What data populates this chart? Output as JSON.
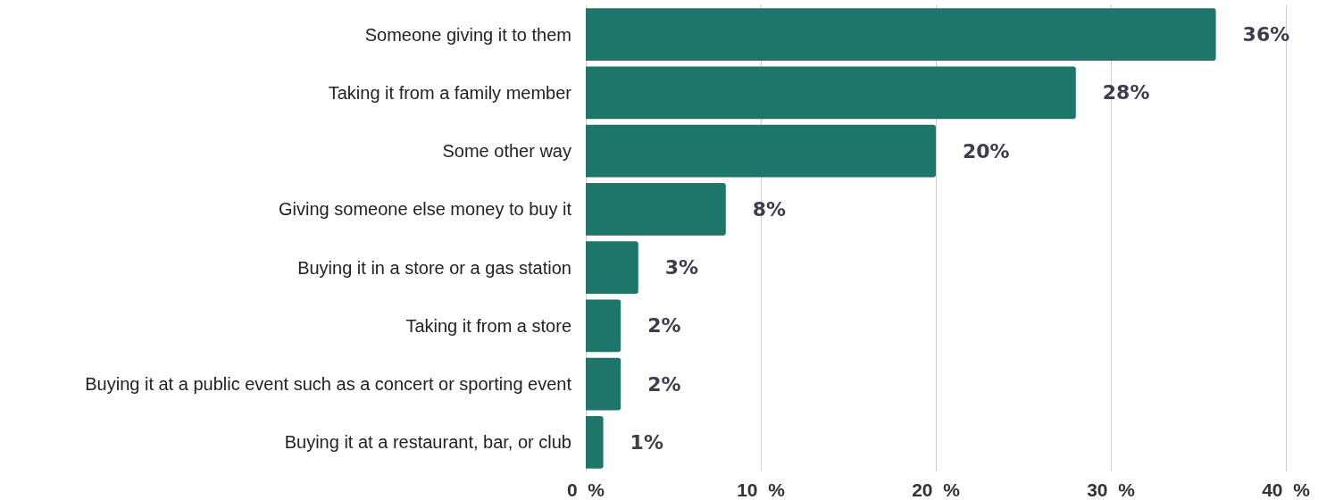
{
  "chart_data": {
    "type": "bar",
    "orientation": "horizontal",
    "categories": [
      "Someone giving it to them",
      "Taking it from a family member",
      "Some other way",
      "Giving someone else money to buy it",
      "Buying it in a store or a gas station",
      "Taking it from a store",
      "Buying it at a public event such as a concert or sporting event",
      "Buying it at a restaurant, bar, or club"
    ],
    "values": [
      36,
      28,
      20,
      8,
      3,
      2,
      2,
      1
    ],
    "value_labels": [
      "36%",
      "28%",
      "20%",
      "8%",
      "3%",
      "2%",
      "2%",
      "1%"
    ],
    "color": "#1e7569",
    "xlim": [
      0,
      40
    ],
    "xticks": [
      {
        "value": 0,
        "label": "0  %"
      },
      {
        "value": 10,
        "label": "10  %"
      },
      {
        "value": 20,
        "label": "20  %"
      },
      {
        "value": 30,
        "label": "30  %"
      },
      {
        "value": 40,
        "label": "40  %"
      }
    ],
    "grid": "x"
  }
}
